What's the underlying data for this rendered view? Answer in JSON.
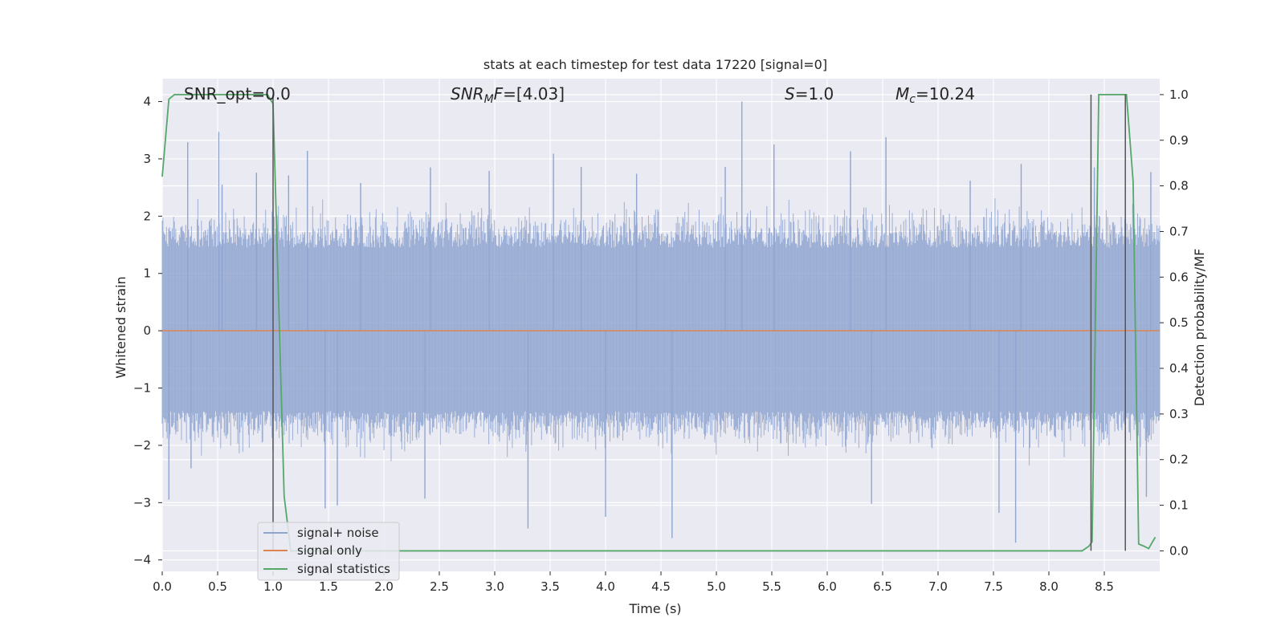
{
  "chart_data": {
    "type": "line",
    "title": "stats at each timestep for test data 17220 [signal=0]",
    "xlabel": "Time (s)",
    "ylabel": "Whitened strain",
    "y2label": "Detection probability/MF",
    "xlim": [
      0.0,
      9.0
    ],
    "ylim": [
      -4.2,
      4.4
    ],
    "y2lim": [
      -0.045,
      1.035
    ],
    "xticks": [
      0.0,
      0.5,
      1.0,
      1.5,
      2.0,
      2.5,
      3.0,
      3.5,
      4.0,
      4.5,
      5.0,
      5.5,
      6.0,
      6.5,
      7.0,
      7.5,
      8.0,
      8.5
    ],
    "xtick_labels": [
      "0.0",
      "0.5",
      "1.0",
      "1.5",
      "2.0",
      "2.5",
      "3.0",
      "3.5",
      "4.0",
      "4.5",
      "5.0",
      "5.5",
      "6.0",
      "6.5",
      "7.0",
      "7.5",
      "8.0",
      "8.5"
    ],
    "yticks": [
      4,
      3,
      2,
      1,
      0,
      -1,
      -2,
      -3,
      -4
    ],
    "ytick_labels": [
      "4",
      "3",
      "2",
      "1",
      "0",
      "−1",
      "−2",
      "−3",
      "−4"
    ],
    "y2ticks": [
      1.0,
      0.9,
      0.8,
      0.7,
      0.6,
      0.5,
      0.4,
      0.3,
      0.2,
      0.1,
      0.0
    ],
    "y2tick_labels": [
      "1.0",
      "0.9",
      "0.8",
      "0.7",
      "0.6",
      "0.5",
      "0.4",
      "0.3",
      "0.2",
      "0.1",
      "0.0"
    ],
    "grid": true,
    "legend_position": "lower-left",
    "legend": [
      {
        "label": "signal+ noise",
        "color": "#8fa5d0"
      },
      {
        "label": "signal only",
        "color": "#dd8452"
      },
      {
        "label": "signal statistics",
        "color": "#55a868"
      }
    ],
    "annotations": [
      {
        "id": "snr_opt",
        "prefix": "SNR_opt=",
        "value": "0.0"
      },
      {
        "id": "snr_mf",
        "math": "SNR",
        "sub": "M",
        "tail": "F=",
        "value": "[4.03]"
      },
      {
        "id": "s",
        "math": "S",
        "tail": "=",
        "value": "1.0"
      },
      {
        "id": "mc",
        "math": "M",
        "sub": "c",
        "tail": "=",
        "value": "10.24"
      }
    ],
    "series": [
      {
        "name": "signal+ noise",
        "axis": "left",
        "color": "#8fa5d0",
        "envelope": "dense noise between roughly -3.7 and 4.0 across 0.0 to 9.0 s",
        "spikes": [
          [
            0.23,
            3.29
          ],
          [
            0.51,
            3.47
          ],
          [
            0.54,
            2.55
          ],
          [
            0.85,
            2.76
          ],
          [
            1.14,
            2.71
          ],
          [
            1.31,
            3.14
          ],
          [
            1.79,
            2.58
          ],
          [
            2.42,
            2.85
          ],
          [
            2.95,
            2.79
          ],
          [
            3.53,
            3.09
          ],
          [
            3.78,
            2.86
          ],
          [
            4.28,
            2.74
          ],
          [
            5.08,
            2.86
          ],
          [
            5.23,
            4.0
          ],
          [
            5.52,
            3.25
          ],
          [
            6.21,
            3.13
          ],
          [
            6.53,
            3.38
          ],
          [
            7.29,
            2.62
          ],
          [
            7.75,
            2.91
          ],
          [
            8.41,
            2.85
          ],
          [
            8.92,
            2.77
          ],
          [
            0.06,
            -2.95
          ],
          [
            0.26,
            -2.4
          ],
          [
            1.47,
            -3.1
          ],
          [
            1.58,
            -3.05
          ],
          [
            2.37,
            -2.93
          ],
          [
            3.3,
            -3.45
          ],
          [
            4.0,
            -3.25
          ],
          [
            4.6,
            -3.62
          ],
          [
            6.4,
            -3.02
          ],
          [
            7.55,
            -3.18
          ],
          [
            7.7,
            -3.7
          ],
          [
            8.88,
            -2.9
          ]
        ]
      },
      {
        "name": "signal only",
        "axis": "left",
        "color": "#dd8452",
        "x": [
          0.0,
          9.0
        ],
        "y": [
          0.0,
          0.0
        ]
      },
      {
        "name": "signal statistics",
        "axis": "right",
        "color": "#55a868",
        "x": [
          0.0,
          0.06,
          0.11,
          0.16,
          0.3,
          0.6,
          0.95,
          1.0,
          1.05,
          1.1,
          1.16,
          1.5,
          2.0,
          3.0,
          4.0,
          5.0,
          6.0,
          7.0,
          8.0,
          8.3,
          8.36,
          8.39,
          8.45,
          8.5,
          8.55,
          8.6,
          8.7,
          8.76,
          8.81,
          8.86,
          8.9,
          8.96
        ],
        "y": [
          0.82,
          0.99,
          1.0,
          1.0,
          1.0,
          1.0,
          1.0,
          0.98,
          0.55,
          0.12,
          0.0,
          0.0,
          0.0,
          0.0,
          0.0,
          0.0,
          0.0,
          0.0,
          0.0,
          0.0,
          0.01,
          0.02,
          1.0,
          1.0,
          1.0,
          1.0,
          1.0,
          0.81,
          0.015,
          0.01,
          0.005,
          0.03
        ]
      }
    ],
    "vertical_markers": {
      "color": "#555555",
      "x": [
        1.0,
        8.38,
        8.69
      ]
    }
  }
}
